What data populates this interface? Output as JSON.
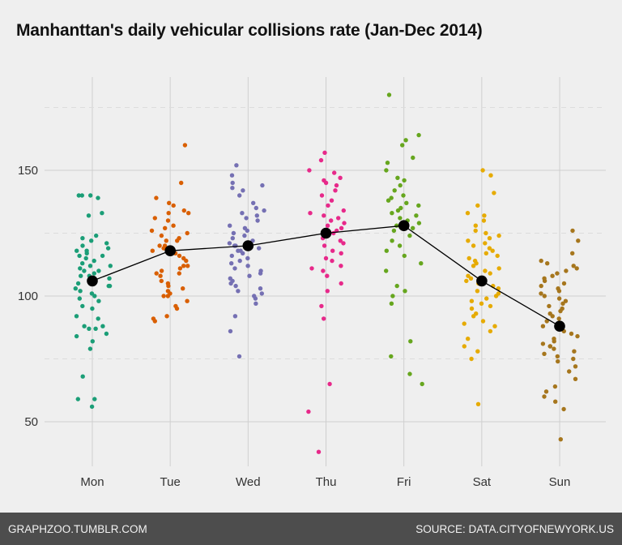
{
  "title": "Manhanttan's daily vehicular collisions rate (Jan-Dec 2014)",
  "footer": {
    "left": "GRAPHZOO.TUMBLR.COM",
    "right": "SOURCE: DATA.CITYOFNEWYORK.US"
  },
  "chart_data": {
    "type": "scatter",
    "title": "Manhanttan's daily vehicular collisions rate (Jan-Dec 2014)",
    "xlabel": "",
    "ylabel": "",
    "categories": [
      "Mon",
      "Tue",
      "Wed",
      "Thu",
      "Fri",
      "Sat",
      "Sun"
    ],
    "ylim": [
      33,
      190
    ],
    "yticks": [
      50,
      100,
      150
    ],
    "minor_gridlines": [
      75,
      125,
      175
    ],
    "grid": true,
    "colors": [
      "#1b9e77",
      "#d95f02",
      "#7570b3",
      "#e7298a",
      "#66a61e",
      "#e6ab02",
      "#a6761d"
    ],
    "series": [
      {
        "category": "Mon",
        "values": [
          56,
          59,
          59,
          68,
          79,
          82,
          84,
          85,
          87,
          87,
          88,
          88,
          91,
          92,
          95,
          96,
          98,
          99,
          100,
          101,
          102,
          103,
          104,
          104,
          105,
          106,
          107,
          108,
          108,
          109,
          110,
          110,
          111,
          112,
          112,
          113,
          114,
          115,
          116,
          116,
          117,
          118,
          118,
          119,
          120,
          121,
          122,
          123,
          124,
          132,
          133,
          139,
          140,
          140,
          140
        ]
      },
      {
        "category": "Tue",
        "values": [
          90,
          91,
          92,
          95,
          96,
          98,
          100,
          100,
          101,
          102,
          103,
          104,
          105,
          106,
          108,
          109,
          109,
          110,
          111,
          112,
          112,
          114,
          115,
          116,
          117,
          118,
          118,
          119,
          120,
          120,
          122,
          122,
          123,
          124,
          125,
          126,
          127,
          128,
          130,
          131,
          133,
          133,
          134,
          136,
          137,
          139,
          145,
          160
        ]
      },
      {
        "category": "Wed",
        "values": [
          76,
          86,
          92,
          97,
          99,
          100,
          101,
          102,
          103,
          104,
          105,
          106,
          107,
          108,
          109,
          110,
          111,
          112,
          113,
          114,
          115,
          116,
          117,
          118,
          118,
          119,
          120,
          120,
          121,
          122,
          123,
          124,
          125,
          126,
          127,
          128,
          130,
          131,
          132,
          133,
          134,
          135,
          137,
          140,
          142,
          143,
          144,
          145,
          148,
          152
        ]
      },
      {
        "category": "Thu",
        "values": [
          38,
          54,
          65,
          91,
          96,
          102,
          105,
          108,
          110,
          111,
          112,
          114,
          115,
          117,
          118,
          120,
          121,
          122,
          123,
          124,
          125,
          126,
          127,
          128,
          129,
          130,
          131,
          132,
          133,
          134,
          136,
          138,
          140,
          142,
          144,
          145,
          146,
          147,
          149,
          150,
          154,
          157
        ]
      },
      {
        "category": "Fri",
        "values": [
          65,
          69,
          76,
          82,
          97,
          100,
          102,
          104,
          110,
          113,
          116,
          118,
          120,
          122,
          124,
          126,
          127,
          128,
          129,
          130,
          131,
          132,
          133,
          134,
          135,
          136,
          137,
          138,
          139,
          140,
          142,
          144,
          146,
          147,
          150,
          153,
          155,
          160,
          162,
          164,
          180
        ]
      },
      {
        "category": "Sat",
        "values": [
          57,
          75,
          78,
          80,
          83,
          86,
          88,
          89,
          90,
          92,
          93,
          95,
          96,
          97,
          98,
          99,
          100,
          101,
          102,
          103,
          104,
          105,
          106,
          107,
          108,
          109,
          110,
          111,
          112,
          113,
          114,
          115,
          116,
          117,
          118,
          119,
          120,
          121,
          122,
          123,
          124,
          125,
          126,
          128,
          130,
          132,
          133,
          136,
          141,
          148,
          150
        ]
      },
      {
        "category": "Sun",
        "values": [
          43,
          55,
          58,
          60,
          62,
          64,
          67,
          70,
          72,
          74,
          75,
          76,
          77,
          78,
          79,
          80,
          80,
          81,
          82,
          83,
          84,
          85,
          86,
          87,
          88,
          89,
          90,
          91,
          92,
          93,
          94,
          95,
          96,
          97,
          98,
          99,
          100,
          101,
          102,
          103,
          104,
          105,
          106,
          107,
          108,
          109,
          110,
          111,
          112,
          113,
          114,
          117,
          122,
          126
        ]
      }
    ],
    "mean_line": {
      "categories": [
        "Mon",
        "Tue",
        "Wed",
        "Thu",
        "Fri",
        "Sat",
        "Sun"
      ],
      "values": [
        106,
        118,
        120,
        125,
        128,
        106,
        88
      ]
    }
  }
}
